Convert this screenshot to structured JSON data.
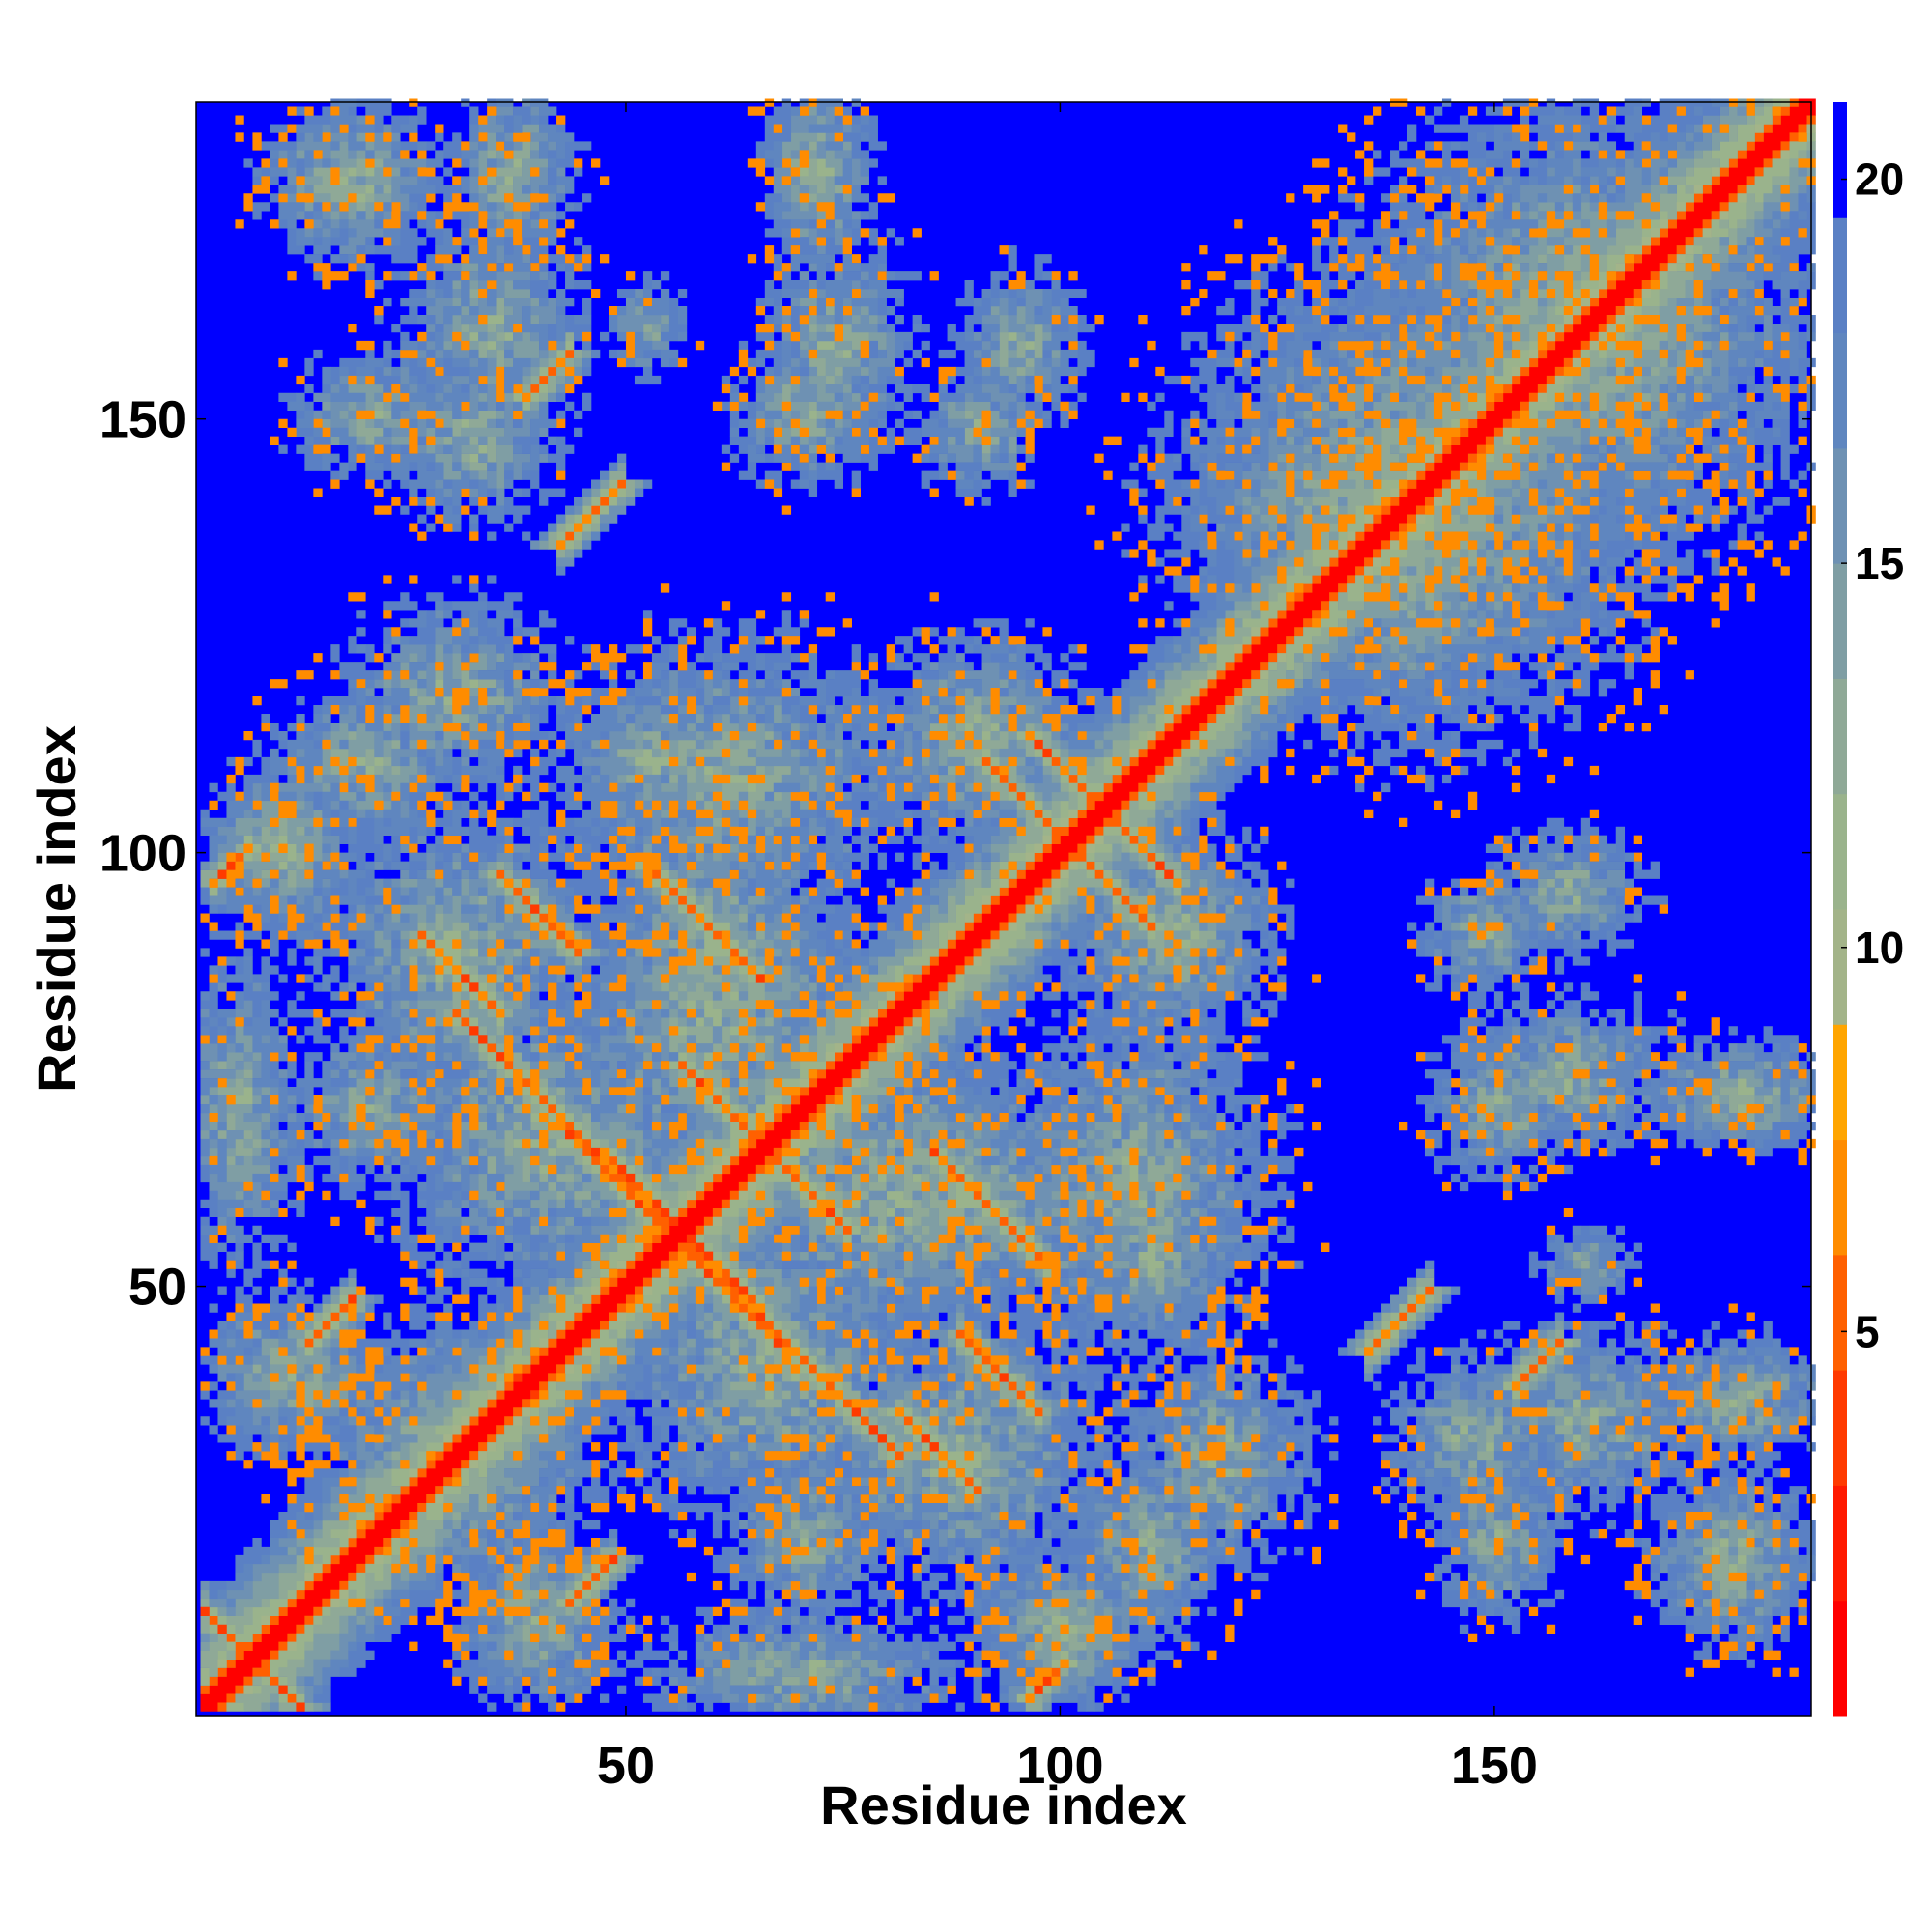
{
  "chart_data": {
    "type": "heatmap",
    "title": "",
    "xlabel": "Residue index",
    "ylabel": "Residue index",
    "n_residues": 186,
    "xlim": [
      1,
      186
    ],
    "ylim": [
      1,
      186
    ],
    "x_ticks": [
      50,
      100,
      150
    ],
    "y_ticks": [
      50,
      100,
      150
    ],
    "colorbar": {
      "ticks": [
        5,
        10,
        15,
        20
      ],
      "range": [
        0,
        21
      ],
      "levels": [
        {
          "max": 1.5,
          "color": "#ff0000"
        },
        {
          "max": 3,
          "color": "#ff1a00"
        },
        {
          "max": 4.5,
          "color": "#ff3a00"
        },
        {
          "max": 6,
          "color": "#ff6000"
        },
        {
          "max": 7.5,
          "color": "#ff8c00"
        },
        {
          "max": 9,
          "color": "#ffa500"
        },
        {
          "max": 10.5,
          "color": "#a3b489"
        },
        {
          "max": 12,
          "color": "#9ab38c"
        },
        {
          "max": 13.5,
          "color": "#8fa997"
        },
        {
          "max": 15,
          "color": "#7f9ea4"
        },
        {
          "max": 16.5,
          "color": "#6e91b3"
        },
        {
          "max": 18,
          "color": "#5f86bf"
        },
        {
          "max": 19.5,
          "color": "#5a80c4"
        },
        {
          "max": 21,
          "color": "#0000ff"
        }
      ]
    },
    "diagonal_band": [
      1,
      186
    ],
    "contacts": [
      {
        "i": 3,
        "j": 10,
        "len": 10,
        "dir": "anti"
      },
      {
        "i": 35,
        "j": 97,
        "len": 10,
        "dir": "anti"
      },
      {
        "i": 47,
        "j": 65,
        "len": 14,
        "dir": "anti"
      },
      {
        "i": 56,
        "j": 75,
        "len": 16,
        "dir": "anti"
      },
      {
        "i": 39,
        "j": 37,
        "len": 8,
        "dir": "parallel"
      },
      {
        "i": 91,
        "j": 110,
        "len": 14,
        "dir": "anti"
      },
      {
        "i": 30,
        "j": 81,
        "len": 28,
        "dir": "anti"
      },
      {
        "i": 52,
        "j": 58,
        "len": 16,
        "dir": "anti"
      },
      {
        "i": 102,
        "j": 107,
        "len": 12,
        "dir": "anti"
      },
      {
        "i": 85,
        "j": 65,
        "len": 14,
        "dir": "anti"
      },
      {
        "i": 26,
        "j": 90,
        "len": 10,
        "dir": "anti"
      },
      {
        "i": 2,
        "j": 96,
        "len": 5,
        "dir": "parallel"
      },
      {
        "i": 13,
        "j": 43,
        "len": 6,
        "dir": "parallel"
      },
      {
        "i": 42,
        "j": 135,
        "len": 8,
        "dir": "parallel"
      },
      {
        "i": 38,
        "j": 152,
        "len": 6,
        "dir": "parallel"
      }
    ],
    "clusters": [
      {
        "x": 18,
        "y": 176,
        "rx": 9,
        "ry": 10
      },
      {
        "x": 35,
        "y": 177,
        "rx": 5,
        "ry": 10
      },
      {
        "x": 70,
        "y": 178,
        "rx": 5,
        "ry": 9
      },
      {
        "x": 20,
        "y": 150,
        "rx": 10,
        "ry": 8
      },
      {
        "x": 32,
        "y": 147,
        "rx": 11,
        "ry": 11
      },
      {
        "x": 70,
        "y": 150,
        "rx": 9,
        "ry": 9
      },
      {
        "x": 90,
        "y": 148,
        "rx": 8,
        "ry": 8
      },
      {
        "x": 140,
        "y": 140,
        "rx": 30,
        "ry": 28
      },
      {
        "x": 160,
        "y": 160,
        "rx": 28,
        "ry": 28
      },
      {
        "x": 158,
        "y": 95,
        "rx": 10,
        "ry": 8
      },
      {
        "x": 158,
        "y": 74,
        "rx": 14,
        "ry": 10
      },
      {
        "x": 178,
        "y": 72,
        "rx": 14,
        "ry": 7
      },
      {
        "x": 160,
        "y": 34,
        "rx": 14,
        "ry": 12
      },
      {
        "x": 177,
        "y": 18,
        "rx": 10,
        "ry": 12
      },
      {
        "x": 178,
        "y": 37,
        "rx": 12,
        "ry": 8
      },
      {
        "x": 160,
        "y": 52,
        "rx": 6,
        "ry": 5
      },
      {
        "x": 100,
        "y": 10,
        "rx": 12,
        "ry": 10
      },
      {
        "x": 40,
        "y": 10,
        "rx": 10,
        "ry": 10
      },
      {
        "x": 70,
        "y": 20,
        "rx": 10,
        "ry": 10
      },
      {
        "x": 12,
        "y": 38,
        "rx": 12,
        "ry": 8
      },
      {
        "x": 10,
        "y": 100,
        "rx": 10,
        "ry": 10
      },
      {
        "x": 20,
        "y": 110,
        "rx": 12,
        "ry": 10
      },
      {
        "x": 52,
        "y": 110,
        "rx": 12,
        "ry": 10
      },
      {
        "x": 90,
        "y": 114,
        "rx": 10,
        "ry": 10
      },
      {
        "x": 60,
        "y": 88,
        "rx": 16,
        "ry": 18
      },
      {
        "x": 40,
        "y": 66,
        "rx": 20,
        "ry": 20
      },
      {
        "x": 80,
        "y": 60,
        "rx": 22,
        "ry": 20
      },
      {
        "x": 108,
        "y": 62,
        "rx": 18,
        "ry": 22
      },
      {
        "x": 112,
        "y": 90,
        "rx": 14,
        "ry": 14
      },
      {
        "x": 30,
        "y": 30,
        "rx": 18,
        "ry": 16
      },
      {
        "x": 88,
        "y": 30,
        "rx": 20,
        "ry": 18
      },
      {
        "x": 118,
        "y": 30,
        "rx": 12,
        "ry": 14
      },
      {
        "x": 5,
        "y": 70,
        "rx": 8,
        "ry": 20
      },
      {
        "x": 130,
        "y": 140,
        "rx": 16,
        "ry": 10
      }
    ]
  }
}
